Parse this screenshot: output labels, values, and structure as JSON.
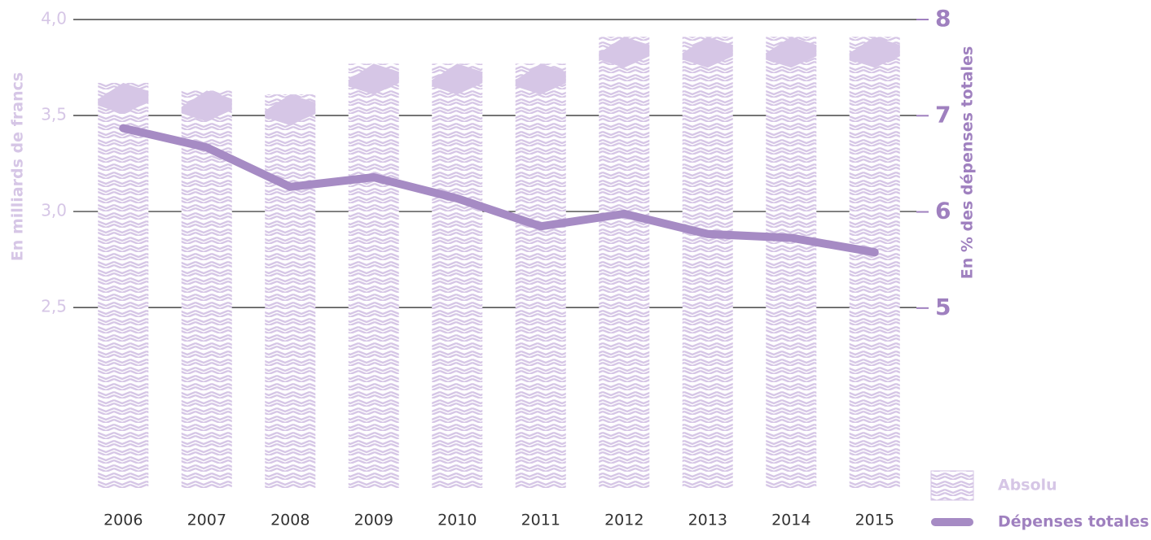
{
  "chart_data": {
    "type": "bar",
    "categories": [
      "2006",
      "2007",
      "2008",
      "2009",
      "2010",
      "2011",
      "2012",
      "2013",
      "2014",
      "2015"
    ],
    "series": [
      {
        "name": "Absolu",
        "type": "bar",
        "color": "#d6c6e6",
        "values": [
          3.67,
          3.63,
          3.61,
          3.77,
          3.77,
          3.77,
          3.91,
          3.91,
          3.91,
          3.91
        ]
      },
      {
        "name": "Dépenses totales",
        "type": "line",
        "axis": "y2",
        "color": "#a68bc4",
        "values": [
          6.87,
          6.67,
          6.26,
          6.36,
          6.14,
          5.85,
          5.98,
          5.77,
          5.73,
          5.58
        ]
      }
    ],
    "y_label": "En milliards de francs",
    "y2_label": "En % des dépenses totales",
    "ylim": [
      1.56,
      4.0
    ],
    "yticks": [
      {
        "value": 2.5,
        "label": "2,5"
      },
      {
        "value": 3.0,
        "label": "3,0"
      },
      {
        "value": 3.5,
        "label": "3,5"
      },
      {
        "value": 4.0,
        "label": "4,0"
      }
    ],
    "y2lim": [
      3.13,
      8
    ],
    "y2ticks": [
      5,
      6,
      7,
      8
    ],
    "grid": true
  }
}
